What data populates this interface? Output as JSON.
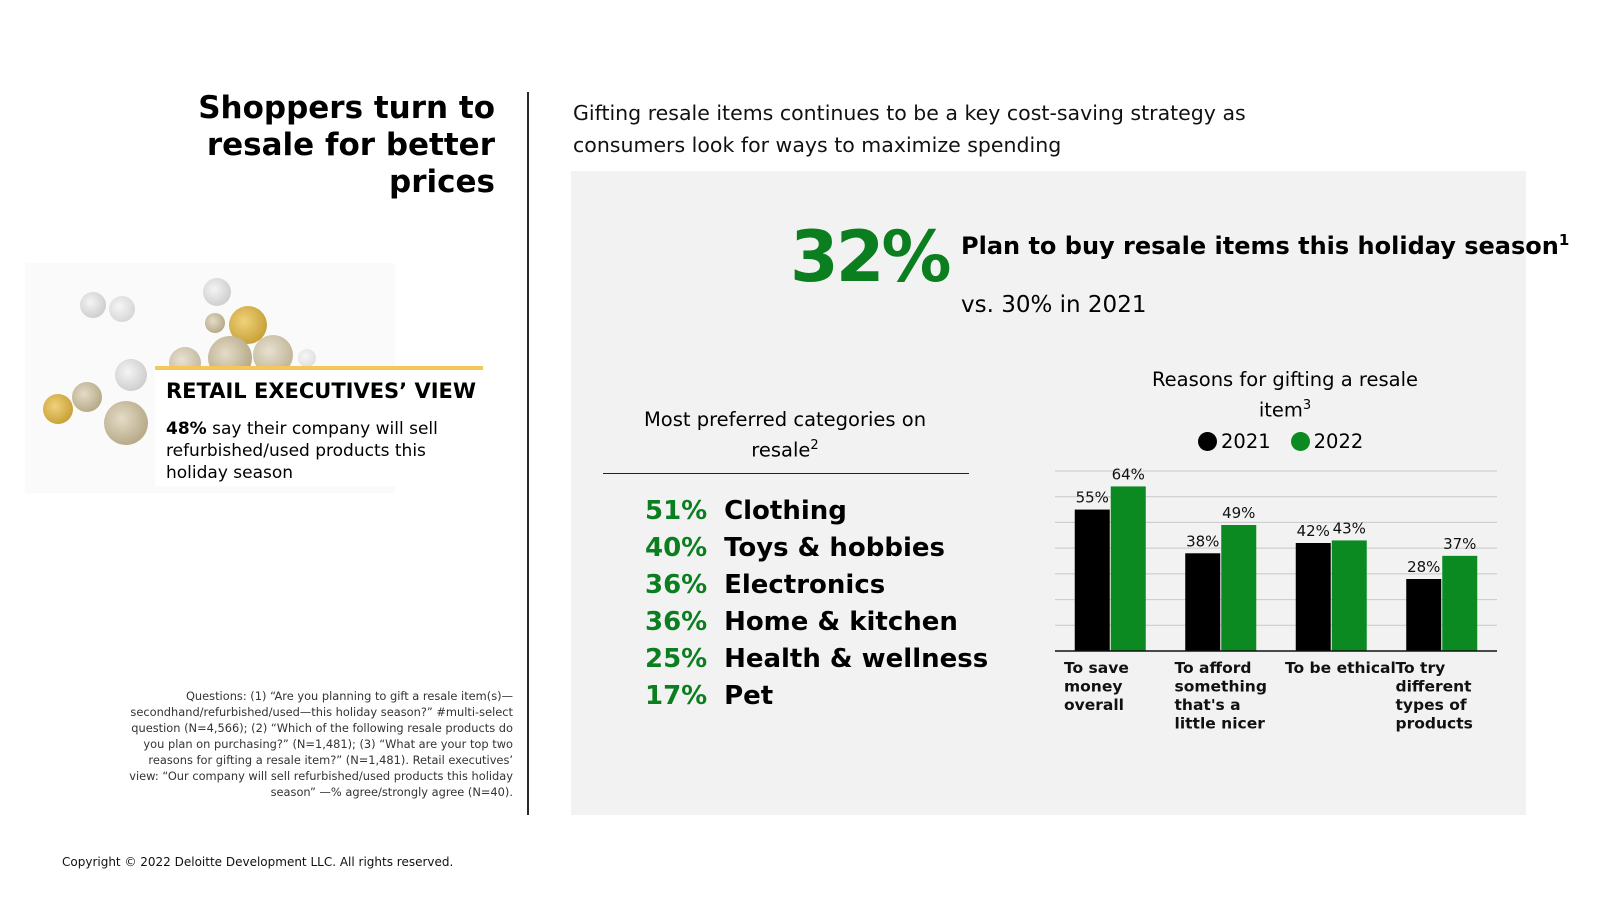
{
  "title": "Shoppers turn to resale for better prices",
  "subtitle": "Gifting resale items continues to be a key cost-saving strategy as consumers look for ways to maximize spending",
  "headline": {
    "percent": "32%",
    "text": "Plan to buy resale items this holiday season",
    "footnote_ref": "1",
    "comparison": "vs. 30% in 2021"
  },
  "retail_exec": {
    "heading": "RETAIL EXECUTIVES’ VIEW",
    "stat": "48%",
    "text": " say their company will sell refurbished/used products this holiday season"
  },
  "categories": {
    "title": "Most preferred categories on resale",
    "footnote_ref": "2",
    "items": [
      {
        "percent": "51%",
        "label": "Clothing"
      },
      {
        "percent": "40%",
        "label": "Toys & hobbies"
      },
      {
        "percent": "36%",
        "label": "Electronics"
      },
      {
        "percent": "36%",
        "label": "Home & kitchen"
      },
      {
        "percent": "25%",
        "label": "Health & wellness"
      },
      {
        "percent": "17%",
        "label": "Pet"
      }
    ]
  },
  "chart_title": "Reasons for gifting a resale item",
  "chart_footnote_ref": "3",
  "chart_data": {
    "type": "bar",
    "title": "Reasons for gifting a resale item",
    "categories": [
      "To save money overall",
      "To afford something that's a little nicer",
      "To be ethical",
      "To try different types of products"
    ],
    "category_lines": [
      [
        "To save",
        "money",
        "overall"
      ],
      [
        "To afford",
        "something",
        "that's a",
        "little nicer"
      ],
      [
        "To be ethical"
      ],
      [
        "To try",
        "different",
        "types of",
        "products"
      ]
    ],
    "series": [
      {
        "name": "2021",
        "values": [
          55,
          38,
          42,
          28
        ],
        "color": "#000000"
      },
      {
        "name": "2022",
        "values": [
          64,
          49,
          43,
          37
        ],
        "color": "#0b8a22"
      }
    ],
    "ylim": [
      0,
      70
    ],
    "grid": true,
    "legend": "top",
    "value_suffix": "%"
  },
  "footnote": "Questions: (1) “Are you planning to gift a resale item(s)—secondhand/refurbished/used—this holiday season?” #multi-select question (N=4,566); (2) “Which of the following resale products do you plan on purchasing?” (N=1,481); (3) “What are your top two reasons for gifting a resale item?” (N=1,481). Retail executives’ view: “Our company will sell refurbished/used products this holiday season” —% agree/strongly agree (N=40).",
  "copyright": "Copyright © 2022 Deloitte Development LLC. All rights reserved."
}
